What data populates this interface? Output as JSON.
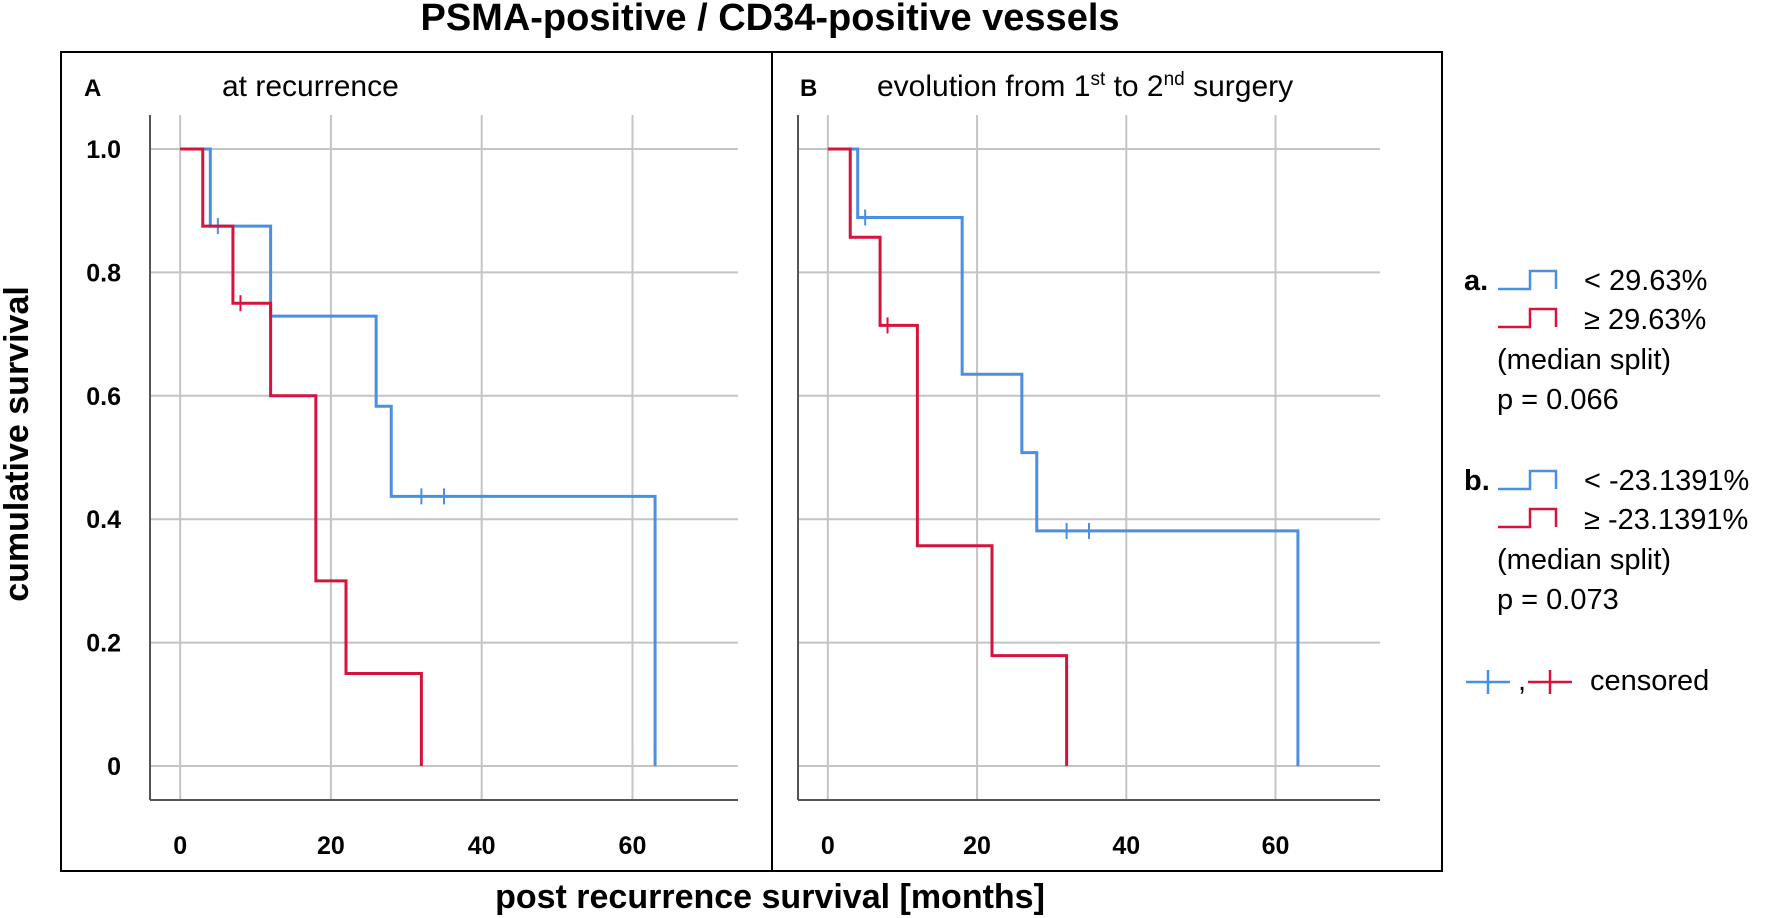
{
  "chart_data": {
    "title": "PSMA-positive / CD34-positive vessels",
    "xlabel": "post recurrence survival [months]",
    "ylabel": "cumulative survival",
    "xlim": [
      -4,
      74
    ],
    "ylim": [
      -0.055,
      1.055
    ],
    "x_ticks": [
      0,
      20,
      40,
      60
    ],
    "x_tick_labels": [
      "0",
      "20",
      "40",
      "60"
    ],
    "y_ticks": [
      0,
      0.2,
      0.4,
      0.6,
      0.8,
      1.0
    ],
    "y_tick_labels": [
      "0",
      "0.2",
      "0.4",
      "0.6",
      "0.8",
      "1.0"
    ],
    "colors": {
      "low": "#4a90e2",
      "high": "#d4143c"
    },
    "panels": [
      {
        "letter": "A",
        "subtitle": "at recurrence",
        "type": "line",
        "series": [
          {
            "name": "< 29.63%",
            "color": "#4a90e2",
            "steps": [
              [
                0,
                1.0
              ],
              [
                4,
                0.875
              ],
              [
                12,
                0.729
              ],
              [
                26,
                0.583
              ],
              [
                28,
                0.437
              ],
              [
                63,
                0.0
              ]
            ],
            "end": 63,
            "censored": [
              [
                5,
                0.875
              ],
              [
                32,
                0.437
              ],
              [
                35,
                0.437
              ]
            ]
          },
          {
            "name": "≥ 29.63%",
            "color": "#d4143c",
            "steps": [
              [
                0,
                1.0
              ],
              [
                3,
                0.875
              ],
              [
                7,
                0.75
              ],
              [
                12,
                0.6
              ],
              [
                18,
                0.3
              ],
              [
                22,
                0.15
              ],
              [
                32,
                0.0
              ]
            ],
            "end": 32,
            "censored": [
              [
                8,
                0.75
              ]
            ]
          }
        ]
      },
      {
        "letter": "B",
        "subtitle_main": "evolution from 1",
        "subtitle_sup1": "st",
        "subtitle_mid": " to 2",
        "subtitle_sup2": "nd",
        "subtitle_end": " surgery",
        "type": "line",
        "series": [
          {
            "name": "< -23.1391%",
            "color": "#4a90e2",
            "steps": [
              [
                0,
                1.0
              ],
              [
                4,
                0.889
              ],
              [
                18,
                0.635
              ],
              [
                26,
                0.508
              ],
              [
                28,
                0.381
              ],
              [
                63,
                0.0
              ]
            ],
            "end": 63,
            "censored": [
              [
                5,
                0.889
              ],
              [
                32,
                0.381
              ],
              [
                35,
                0.381
              ]
            ]
          },
          {
            "name": "≥ -23.1391%",
            "color": "#d4143c",
            "steps": [
              [
                0,
                1.0
              ],
              [
                3,
                0.857
              ],
              [
                7,
                0.714
              ],
              [
                12,
                0.357
              ],
              [
                22,
                0.179
              ],
              [
                32,
                0.0
              ]
            ],
            "end": 32,
            "censored": [
              [
                8,
                0.714
              ]
            ]
          }
        ]
      }
    ],
    "legend": {
      "a": {
        "marker": "a.",
        "low_label": "< 29.63%",
        "high_label": "≥ 29.63%",
        "note": "(median split)",
        "p": "p = 0.066"
      },
      "b": {
        "marker": "b.",
        "low_label": "< -23.1391%",
        "high_label": "≥ -23.1391%",
        "note": "(median split)",
        "p": "p = 0.073"
      },
      "separator": ",",
      "censored_label": "censored"
    }
  }
}
